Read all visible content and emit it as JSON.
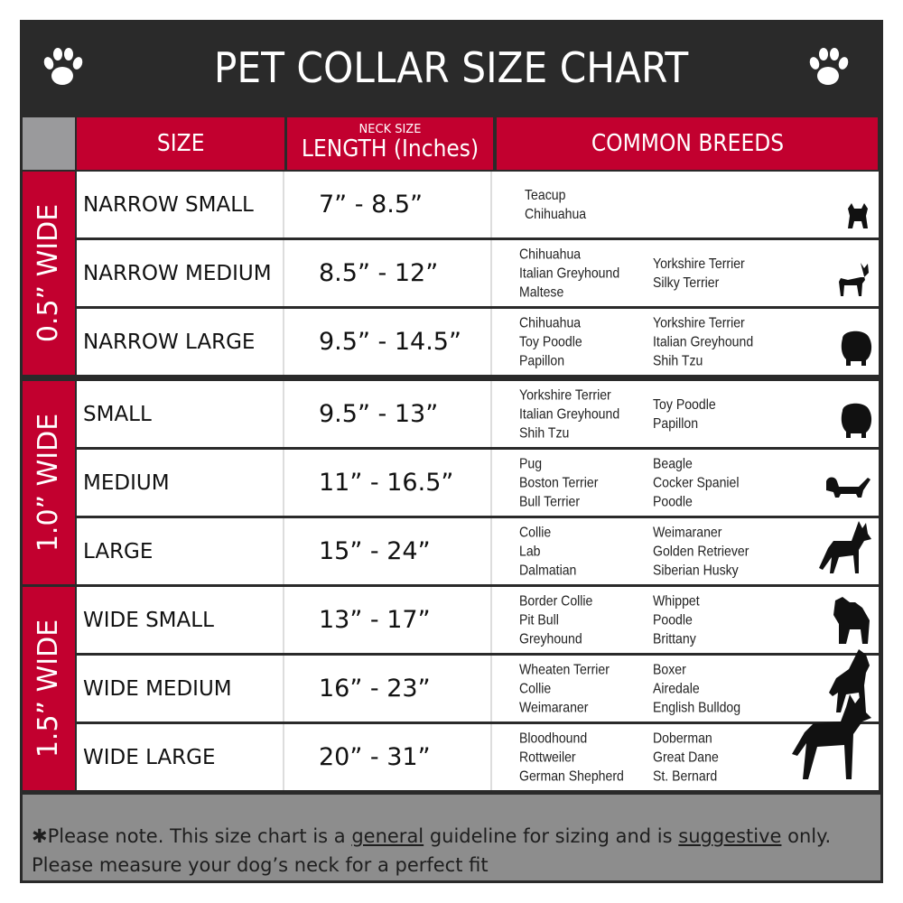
{
  "title": "PET COLLAR SIZE CHART",
  "colors": {
    "accent_red": "#c2002f",
    "dark": "#2a2a2a",
    "footer_grey": "#8d8d8d"
  },
  "header": {
    "size": "SIZE",
    "length_small": "NECK SIZE",
    "length": "LENGTH (Inches)",
    "breeds": "COMMON BREEDS"
  },
  "groups": [
    {
      "label": "0.5” WIDE",
      "rows": [
        {
          "size": "NARROW SMALL",
          "length": "7” - 8.5”",
          "breeds_left": [
            "Teacup",
            "Chihuahua"
          ],
          "breeds_right": [],
          "icon": "yorkie-silhouette-icon"
        },
        {
          "size": "NARROW MEDIUM",
          "length": "8.5” - 12”",
          "breeds_left": [
            "Chihuahua",
            "Italian Greyhound",
            "Maltese"
          ],
          "breeds_right": [
            "Yorkshire Terrier",
            "Silky Terrier"
          ],
          "icon": "chihuahua-silhouette-icon"
        },
        {
          "size": "NARROW LARGE",
          "length": "9.5” - 14.5”",
          "breeds_left": [
            "Chihuahua",
            "Toy Poodle",
            "Papillon"
          ],
          "breeds_right": [
            "Yorkshire Terrier",
            "Italian Greyhound",
            "Shih Tzu"
          ],
          "icon": "pomeranian-silhouette-icon"
        }
      ]
    },
    {
      "label": "1.0” WIDE",
      "rows": [
        {
          "size": "SMALL",
          "length": "9.5” - 13”",
          "breeds_left": [
            "Yorkshire Terrier",
            "Italian Greyhound",
            "Shih Tzu"
          ],
          "breeds_right": [
            "Toy Poodle",
            "Papillon"
          ],
          "icon": "pomeranian-silhouette-icon"
        },
        {
          "size": "MEDIUM",
          "length": "11” - 16.5”",
          "breeds_left": [
            "Pug",
            "Boston Terrier",
            "Bull Terrier"
          ],
          "breeds_right": [
            "Beagle",
            "Cocker Spaniel",
            "Poodle"
          ],
          "icon": "dachshund-silhouette-icon"
        },
        {
          "size": "LARGE",
          "length": "15” - 24”",
          "breeds_left": [
            "Collie",
            "Lab",
            "Dalmatian"
          ],
          "breeds_right": [
            "Weimaraner",
            "Golden Retriever",
            "Siberian Husky"
          ],
          "icon": "shepherd-silhouette-icon"
        }
      ]
    },
    {
      "label": "1.5” WIDE",
      "rows": [
        {
          "size": "WIDE SMALL",
          "length": "13” - 17”",
          "breeds_left": [
            "Border Collie",
            "Pit Bull",
            "Greyhound"
          ],
          "breeds_right": [
            "Whippet",
            "Poodle",
            "Brittany"
          ],
          "icon": "bulldog-silhouette-icon"
        },
        {
          "size": "WIDE MEDIUM",
          "length": "16” - 23”",
          "breeds_left": [
            "Wheaten Terrier",
            "Collie",
            "Weimaraner"
          ],
          "breeds_right": [
            "Boxer",
            "Airedale",
            "English Bulldog"
          ],
          "icon": "pitbull-silhouette-icon"
        },
        {
          "size": "WIDE LARGE",
          "length": "20” - 31”",
          "breeds_left": [
            "Bloodhound",
            "Rottweiler",
            "German Shepherd"
          ],
          "breeds_right": [
            "Doberman",
            "Great Dane",
            "St. Bernard"
          ],
          "icon": "doberman-silhouette-icon"
        }
      ]
    }
  ],
  "footer": {
    "part1": "✱Please note. This size chart is a ",
    "general": "general",
    "part2": " guideline for sizing and is ",
    "suggestive": "suggestive",
    "part3": " only.",
    "line2": "Please measure your dog’s neck for a perfect fit"
  }
}
